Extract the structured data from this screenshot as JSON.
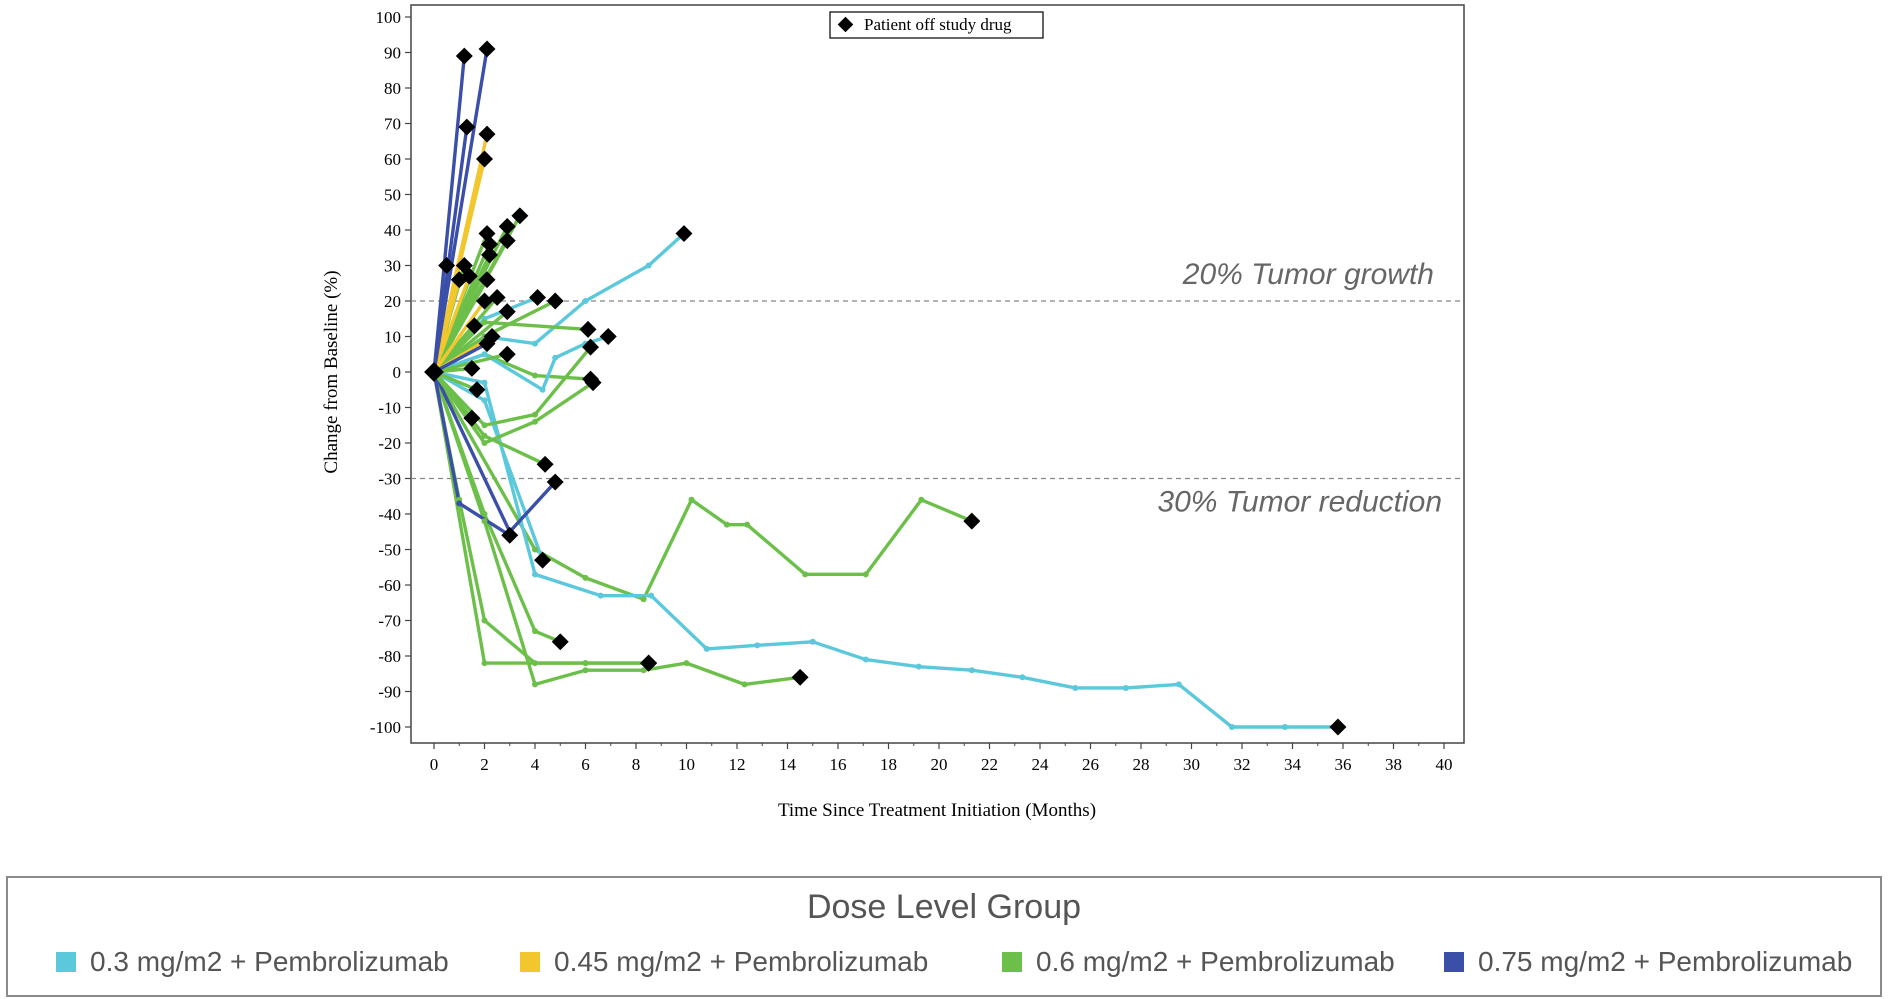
{
  "chart_data": {
    "type": "line",
    "title": "",
    "xlabel": "Time Since Treatment Initiation (Months)",
    "ylabel": "Change from Baseline (%)",
    "xlim": [
      0,
      40
    ],
    "ylim": [
      -100,
      100
    ],
    "xticks": [
      0,
      2,
      4,
      6,
      8,
      10,
      12,
      14,
      16,
      18,
      20,
      22,
      24,
      26,
      28,
      30,
      32,
      34,
      36,
      38,
      40
    ],
    "yticks": [
      100,
      90,
      80,
      70,
      60,
      50,
      40,
      30,
      20,
      10,
      0,
      -10,
      -20,
      -30,
      -40,
      -50,
      -60,
      -70,
      -80,
      -90,
      -100
    ],
    "reference_lines": [
      {
        "y": 20,
        "label": "20% Tumor growth"
      },
      {
        "y": -30,
        "label": "30% Tumor reduction"
      }
    ],
    "marker_legend": "Patient off study drug",
    "colors": {
      "0.3": "#5bc8dc",
      "0.45": "#f2c72e",
      "0.6": "#6cc04a",
      "0.75": "#3c4fa8",
      "marker": "#000000"
    },
    "series": [
      {
        "group": "0.6",
        "points": [
          [
            0,
            0
          ],
          [
            1,
            -36
          ],
          [
            2,
            -70
          ],
          [
            4,
            -82
          ],
          [
            6,
            -82
          ],
          [
            8.5,
            -82
          ]
        ],
        "off": true
      },
      {
        "group": "0.6",
        "points": [
          [
            0,
            0
          ],
          [
            2,
            -82
          ],
          [
            6,
            -82
          ],
          [
            8.5,
            -82
          ]
        ],
        "off": true
      },
      {
        "group": "0.6",
        "points": [
          [
            0,
            0
          ],
          [
            2,
            -42
          ],
          [
            4,
            -88
          ],
          [
            6,
            -84
          ],
          [
            8.3,
            -84
          ],
          [
            10,
            -82
          ],
          [
            12.3,
            -88
          ],
          [
            14.5,
            -86
          ]
        ],
        "off": true
      },
      {
        "group": "0.6",
        "points": [
          [
            0,
            0
          ],
          [
            2,
            -40
          ],
          [
            4,
            -73
          ],
          [
            5,
            -76
          ]
        ],
        "off": true
      },
      {
        "group": "0.6",
        "points": [
          [
            0,
            0
          ],
          [
            4,
            -50
          ],
          [
            6,
            -58
          ],
          [
            8.3,
            -64
          ],
          [
            10.2,
            -36
          ],
          [
            11.6,
            -43
          ],
          [
            12.4,
            -43
          ],
          [
            14.7,
            -57
          ],
          [
            17.1,
            -57
          ],
          [
            19.3,
            -36
          ],
          [
            21.3,
            -42
          ]
        ],
        "off": true
      },
      {
        "group": "0.3",
        "points": [
          [
            0,
            0
          ],
          [
            2,
            -3
          ],
          [
            4,
            -57
          ],
          [
            6.6,
            -63
          ],
          [
            8.6,
            -63
          ],
          [
            10.8,
            -78
          ],
          [
            12.8,
            -77
          ],
          [
            15,
            -76
          ],
          [
            17.1,
            -81
          ],
          [
            19.2,
            -83
          ],
          [
            21.3,
            -84
          ],
          [
            23.3,
            -86
          ],
          [
            25.4,
            -89
          ],
          [
            27.4,
            -89
          ],
          [
            29.5,
            -88
          ],
          [
            31.6,
            -100
          ],
          [
            33.7,
            -100
          ],
          [
            35.8,
            -100
          ]
        ],
        "off": true
      },
      {
        "group": "0.3",
        "points": [
          [
            0,
            0
          ],
          [
            2,
            -8
          ],
          [
            4.3,
            -53
          ]
        ],
        "off": true
      },
      {
        "group": "0.75",
        "points": [
          [
            0,
            0
          ],
          [
            1,
            -37
          ],
          [
            3,
            -46
          ]
        ],
        "off": true
      },
      {
        "group": "0.75",
        "points": [
          [
            0,
            0
          ],
          [
            3,
            -45
          ],
          [
            4.8,
            -31
          ]
        ],
        "off": true
      },
      {
        "group": "0.6",
        "points": [
          [
            0,
            0
          ],
          [
            2,
            -18
          ],
          [
            4.4,
            -26
          ]
        ],
        "off": true
      },
      {
        "group": "0.6",
        "points": [
          [
            0,
            0
          ],
          [
            2,
            -20
          ],
          [
            4,
            -14
          ],
          [
            6.3,
            -3
          ]
        ],
        "off": true
      },
      {
        "group": "0.6",
        "points": [
          [
            0,
            0
          ],
          [
            2,
            -15
          ],
          [
            4,
            -12
          ],
          [
            6.2,
            7
          ]
        ],
        "off": true
      },
      {
        "group": "0.6",
        "points": [
          [
            0,
            0
          ],
          [
            2,
            5
          ],
          [
            4,
            -1
          ],
          [
            6.2,
            -2
          ]
        ],
        "off": true
      },
      {
        "group": "0.3",
        "points": [
          [
            0,
            0
          ],
          [
            2,
            5
          ],
          [
            4.3,
            -5
          ],
          [
            4.8,
            4
          ],
          [
            6,
            8
          ],
          [
            6.9,
            10
          ]
        ],
        "off": true
      },
      {
        "group": "0.3",
        "points": [
          [
            0,
            0
          ],
          [
            2,
            10
          ],
          [
            4,
            8
          ],
          [
            6,
            20
          ],
          [
            8.5,
            30
          ],
          [
            9.9,
            39
          ]
        ],
        "off": true
      },
      {
        "group": "0.3",
        "points": [
          [
            0,
            0
          ],
          [
            2,
            15
          ],
          [
            4.1,
            21
          ]
        ],
        "off": true
      },
      {
        "group": "0.6",
        "points": [
          [
            0,
            0
          ],
          [
            2,
            10
          ],
          [
            4.8,
            20
          ]
        ],
        "off": true
      },
      {
        "group": "0.6",
        "points": [
          [
            0,
            0
          ],
          [
            2,
            14
          ],
          [
            6.1,
            12
          ]
        ],
        "off": true
      },
      {
        "group": "0.6",
        "points": [
          [
            0,
            0
          ],
          [
            1.5,
            -13
          ]
        ],
        "off": true
      },
      {
        "group": "0.6",
        "points": [
          [
            0,
            0
          ],
          [
            1.7,
            -5
          ]
        ],
        "off": true
      },
      {
        "group": "0.6",
        "points": [
          [
            0,
            0
          ],
          [
            1.5,
            1
          ]
        ],
        "off": true
      },
      {
        "group": "0.6",
        "points": [
          [
            0,
            0
          ],
          [
            1.6,
            13
          ]
        ],
        "off": true
      },
      {
        "group": "0.6",
        "points": [
          [
            0,
            0
          ],
          [
            2.9,
            5
          ]
        ],
        "off": true
      },
      {
        "group": "0.6",
        "points": [
          [
            0,
            0
          ],
          [
            2.9,
            17
          ]
        ],
        "off": true
      },
      {
        "group": "0.6",
        "points": [
          [
            0,
            0
          ],
          [
            2.5,
            21
          ]
        ],
        "off": true
      },
      {
        "group": "0.6",
        "points": [
          [
            0,
            0
          ],
          [
            2.1,
            26
          ]
        ],
        "off": true
      },
      {
        "group": "0.6",
        "points": [
          [
            0,
            0
          ],
          [
            2.2,
            33
          ]
        ],
        "off": true
      },
      {
        "group": "0.6",
        "points": [
          [
            0,
            0
          ],
          [
            2.2,
            36
          ]
        ],
        "off": true
      },
      {
        "group": "0.6",
        "points": [
          [
            0,
            0
          ],
          [
            2.1,
            39
          ]
        ],
        "off": true
      },
      {
        "group": "0.6",
        "points": [
          [
            0,
            0
          ],
          [
            2.9,
            37
          ]
        ],
        "off": true
      },
      {
        "group": "0.6",
        "points": [
          [
            0,
            0
          ],
          [
            2.9,
            41
          ]
        ],
        "off": true
      },
      {
        "group": "0.6",
        "points": [
          [
            0,
            0
          ],
          [
            3.4,
            44
          ]
        ],
        "off": true
      },
      {
        "group": "0.6",
        "points": [
          [
            0,
            0
          ],
          [
            1.2,
            30
          ]
        ],
        "off": true
      },
      {
        "group": "0.3",
        "points": [
          [
            0,
            0
          ],
          [
            0.5,
            30
          ]
        ],
        "off": true
      },
      {
        "group": "0.45",
        "points": [
          [
            0,
            0
          ],
          [
            1,
            26
          ]
        ],
        "off": true
      },
      {
        "group": "0.45",
        "points": [
          [
            0,
            0
          ],
          [
            1.4,
            27
          ]
        ],
        "off": true
      },
      {
        "group": "0.45",
        "points": [
          [
            0,
            0
          ],
          [
            2,
            20
          ]
        ],
        "off": true
      },
      {
        "group": "0.45",
        "points": [
          [
            0,
            0
          ],
          [
            2.3,
            10
          ]
        ],
        "off": true
      },
      {
        "group": "0.45",
        "points": [
          [
            0,
            0
          ],
          [
            2,
            60
          ]
        ],
        "off": true
      },
      {
        "group": "0.45",
        "points": [
          [
            0,
            0
          ],
          [
            2.1,
            67
          ]
        ],
        "off": true
      },
      {
        "group": "0.75",
        "points": [
          [
            0,
            0
          ],
          [
            2.1,
            8
          ]
        ],
        "off": true
      },
      {
        "group": "0.75",
        "points": [
          [
            0,
            0
          ],
          [
            1.3,
            69
          ]
        ],
        "off": true
      },
      {
        "group": "0.75",
        "points": [
          [
            0,
            0
          ],
          [
            1.2,
            89
          ]
        ],
        "off": true
      },
      {
        "group": "0.75",
        "points": [
          [
            0,
            0
          ],
          [
            2.1,
            91
          ]
        ],
        "off": true
      }
    ]
  },
  "legend": {
    "title": "Dose Level Group",
    "items": [
      {
        "label": "0.3 mg/m2 + Pembrolizumab",
        "color": "#5bc8dc"
      },
      {
        "label": "0.45 mg/m2 + Pembrolizumab",
        "color": "#f2c72e"
      },
      {
        "label": "0.6 mg/m2 + Pembrolizumab",
        "color": "#6cc04a"
      },
      {
        "label": "0.75 mg/m2 + Pembrolizumab",
        "color": "#3c4fa8"
      }
    ]
  }
}
